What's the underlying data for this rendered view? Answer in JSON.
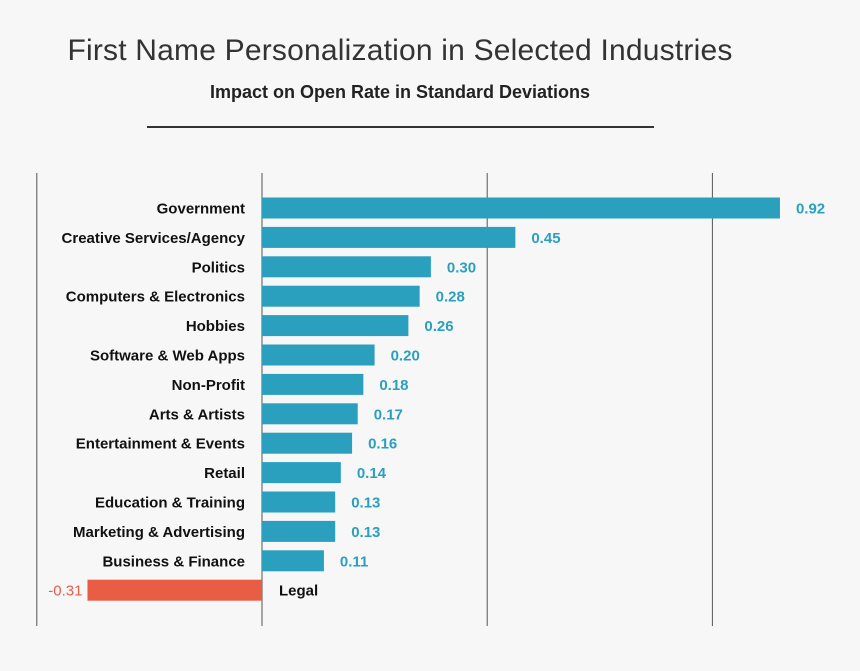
{
  "chart_data": {
    "type": "bar",
    "orientation": "horizontal",
    "title": "First Name Personalization in Selected Industries",
    "subtitle": "Impact on Open Rate in Standard Deviations",
    "categories": [
      "Government",
      "Creative Services/Agency",
      "Politics",
      "Computers & Electronics",
      "Hobbies",
      "Software & Web Apps",
      "Non-Profit",
      "Arts & Artists",
      "Entertainment & Events",
      "Retail",
      "Education & Training",
      "Marketing & Advertising",
      "Business & Finance",
      "Legal"
    ],
    "values": [
      0.92,
      0.45,
      0.3,
      0.28,
      0.26,
      0.2,
      0.18,
      0.17,
      0.16,
      0.14,
      0.13,
      0.13,
      0.11,
      -0.31
    ],
    "value_labels": [
      "0.92",
      "0.45",
      "0.30",
      "0.28",
      "0.26",
      "0.20",
      "0.18",
      "0.17",
      "0.16",
      "0.14",
      "0.13",
      "0.13",
      "0.11",
      "-0.31"
    ],
    "xlim": [
      -0.4,
      1.2
    ],
    "gridlines_at": [
      -0.4,
      0,
      0.4,
      0.8
    ],
    "grid": true,
    "colors": {
      "positive": "#2b9fbe",
      "negative": "#ea5d45",
      "label_positive": "#2b9fbe",
      "label_negative": "#ea5d45"
    }
  }
}
